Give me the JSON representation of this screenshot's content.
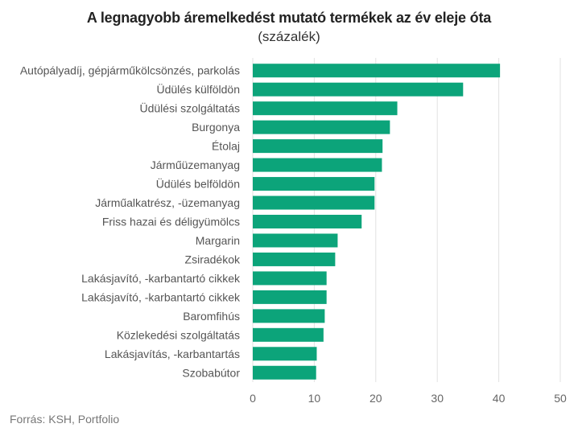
{
  "chart_data": {
    "type": "bar",
    "orientation": "horizontal",
    "title": "A legnagyobb áremelkedést mutató termékek az év eleje óta",
    "subtitle": "(százalék)",
    "categories": [
      "Autópályadíj, gépjárműkölcsönzés, parkolás",
      "Üdülés külföldön",
      "Üdülési szolgáltatás",
      "Burgonya",
      "Étolaj",
      "Járműüzemanyag",
      "Üdülés belföldön",
      "Járműalkatrész, -üzemanyag",
      "Friss hazai és déligyümölcs",
      "Margarin",
      "Zsiradékok",
      "Lakásjavító, -karbantartó cikkek",
      "Lakásjavító, -karbantartó cikkek",
      "Baromfihús",
      "Közlekedési szolgáltatás",
      "Lakásjavítás, -karbantartás",
      "Szobabútor"
    ],
    "values": [
      40.2,
      34.2,
      23.5,
      22.3,
      21.1,
      21.0,
      19.8,
      19.8,
      17.7,
      13.8,
      13.4,
      12.0,
      12.0,
      11.7,
      11.5,
      10.4,
      10.3
    ],
    "xlim": [
      0,
      50
    ],
    "xticks": [
      0,
      10,
      20,
      30,
      40,
      50
    ],
    "grid": true,
    "bar_color": "#0ca47a"
  },
  "source": "Forrás: KSH, Portfolio"
}
